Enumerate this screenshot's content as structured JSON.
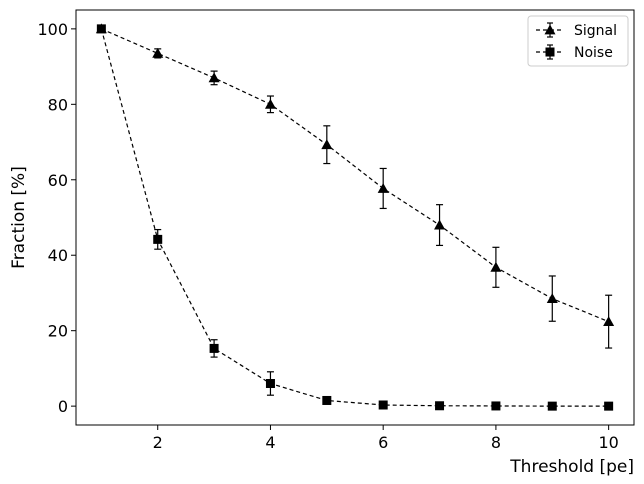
{
  "chart_data": {
    "type": "line",
    "xlabel": "Threshold [pe]",
    "ylabel": "Fraction [%]",
    "xlim": [
      0.55,
      10.45
    ],
    "ylim": [
      -5,
      105
    ],
    "xticks": [
      2,
      4,
      6,
      8,
      10
    ],
    "yticks": [
      0,
      20,
      40,
      60,
      80,
      100
    ],
    "grid": false,
    "legend": "top-right",
    "series": [
      {
        "name": "Signal",
        "marker": "triangle",
        "linestyle": "dashed",
        "color": "#000000",
        "x": [
          1,
          2,
          3,
          4,
          5,
          6,
          7,
          8,
          9,
          10
        ],
        "y": [
          100,
          93.5,
          87,
          80,
          69.3,
          57.7,
          48,
          36.8,
          28.5,
          22.4
        ],
        "yerr": [
          0.5,
          1.2,
          1.8,
          2.2,
          5.0,
          5.3,
          5.4,
          5.3,
          6.0,
          7.0
        ]
      },
      {
        "name": "Noise",
        "marker": "square",
        "linestyle": "dashed",
        "color": "#000000",
        "x": [
          1,
          2,
          3,
          4,
          5,
          6,
          7,
          8,
          9,
          10
        ],
        "y": [
          100,
          44.2,
          15.3,
          6.0,
          1.5,
          0.3,
          0.1,
          0.05,
          0.0,
          0.0
        ],
        "yerr": [
          0.3,
          2.6,
          2.3,
          3.1,
          0.4,
          0.2,
          0.1,
          0.05,
          0.0,
          0.0
        ]
      }
    ]
  }
}
